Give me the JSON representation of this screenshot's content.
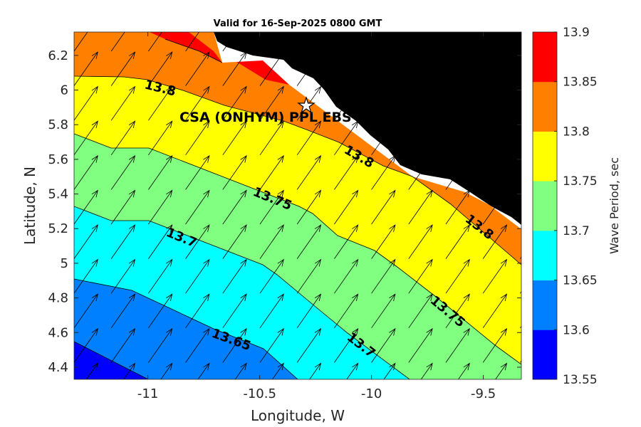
{
  "chart_data": {
    "type": "heatmap",
    "subtype": "filled-contour map with direction arrows",
    "title": "Valid for 16-Sep-2025 0800 GMT",
    "xlabel": "Longitude, W",
    "ylabel": "Latitude, N",
    "xlim": [
      -11.33,
      -9.33
    ],
    "ylim": [
      4.33,
      6.335
    ],
    "xticks": [
      "-11",
      "-10.5",
      "-10",
      "-9.5"
    ],
    "xtick_values": [
      -11,
      -10.5,
      -10,
      -9.5
    ],
    "yticks": [
      "4.4",
      "4.6",
      "4.8",
      "5",
      "5.2",
      "5.4",
      "5.6",
      "5.8",
      "6",
      "6.2"
    ],
    "ytick_values": [
      4.4,
      4.6,
      4.8,
      5.0,
      5.2,
      5.4,
      5.6,
      5.8,
      6.0,
      6.2
    ],
    "colorbar": {
      "label": "Wave Period, sec",
      "levels": [
        "13.55",
        "13.6",
        "13.65",
        "13.7",
        "13.75",
        "13.8",
        "13.85",
        "13.9"
      ],
      "colors": [
        "#0000ff",
        "#0080ff",
        "#00ffff",
        "#80ff80",
        "#ffff00",
        "#ff8000",
        "#ff0000"
      ]
    },
    "contour_labels": [
      "13.8",
      "13.8",
      "13.8",
      "13.75",
      "13.75",
      "13.7",
      "13.7",
      "13.65"
    ],
    "arrow_direction_deg": 35,
    "site": {
      "label": "CSA (ONHYM) PPL EBS",
      "lon": -10.29,
      "lat": 5.91
    }
  }
}
